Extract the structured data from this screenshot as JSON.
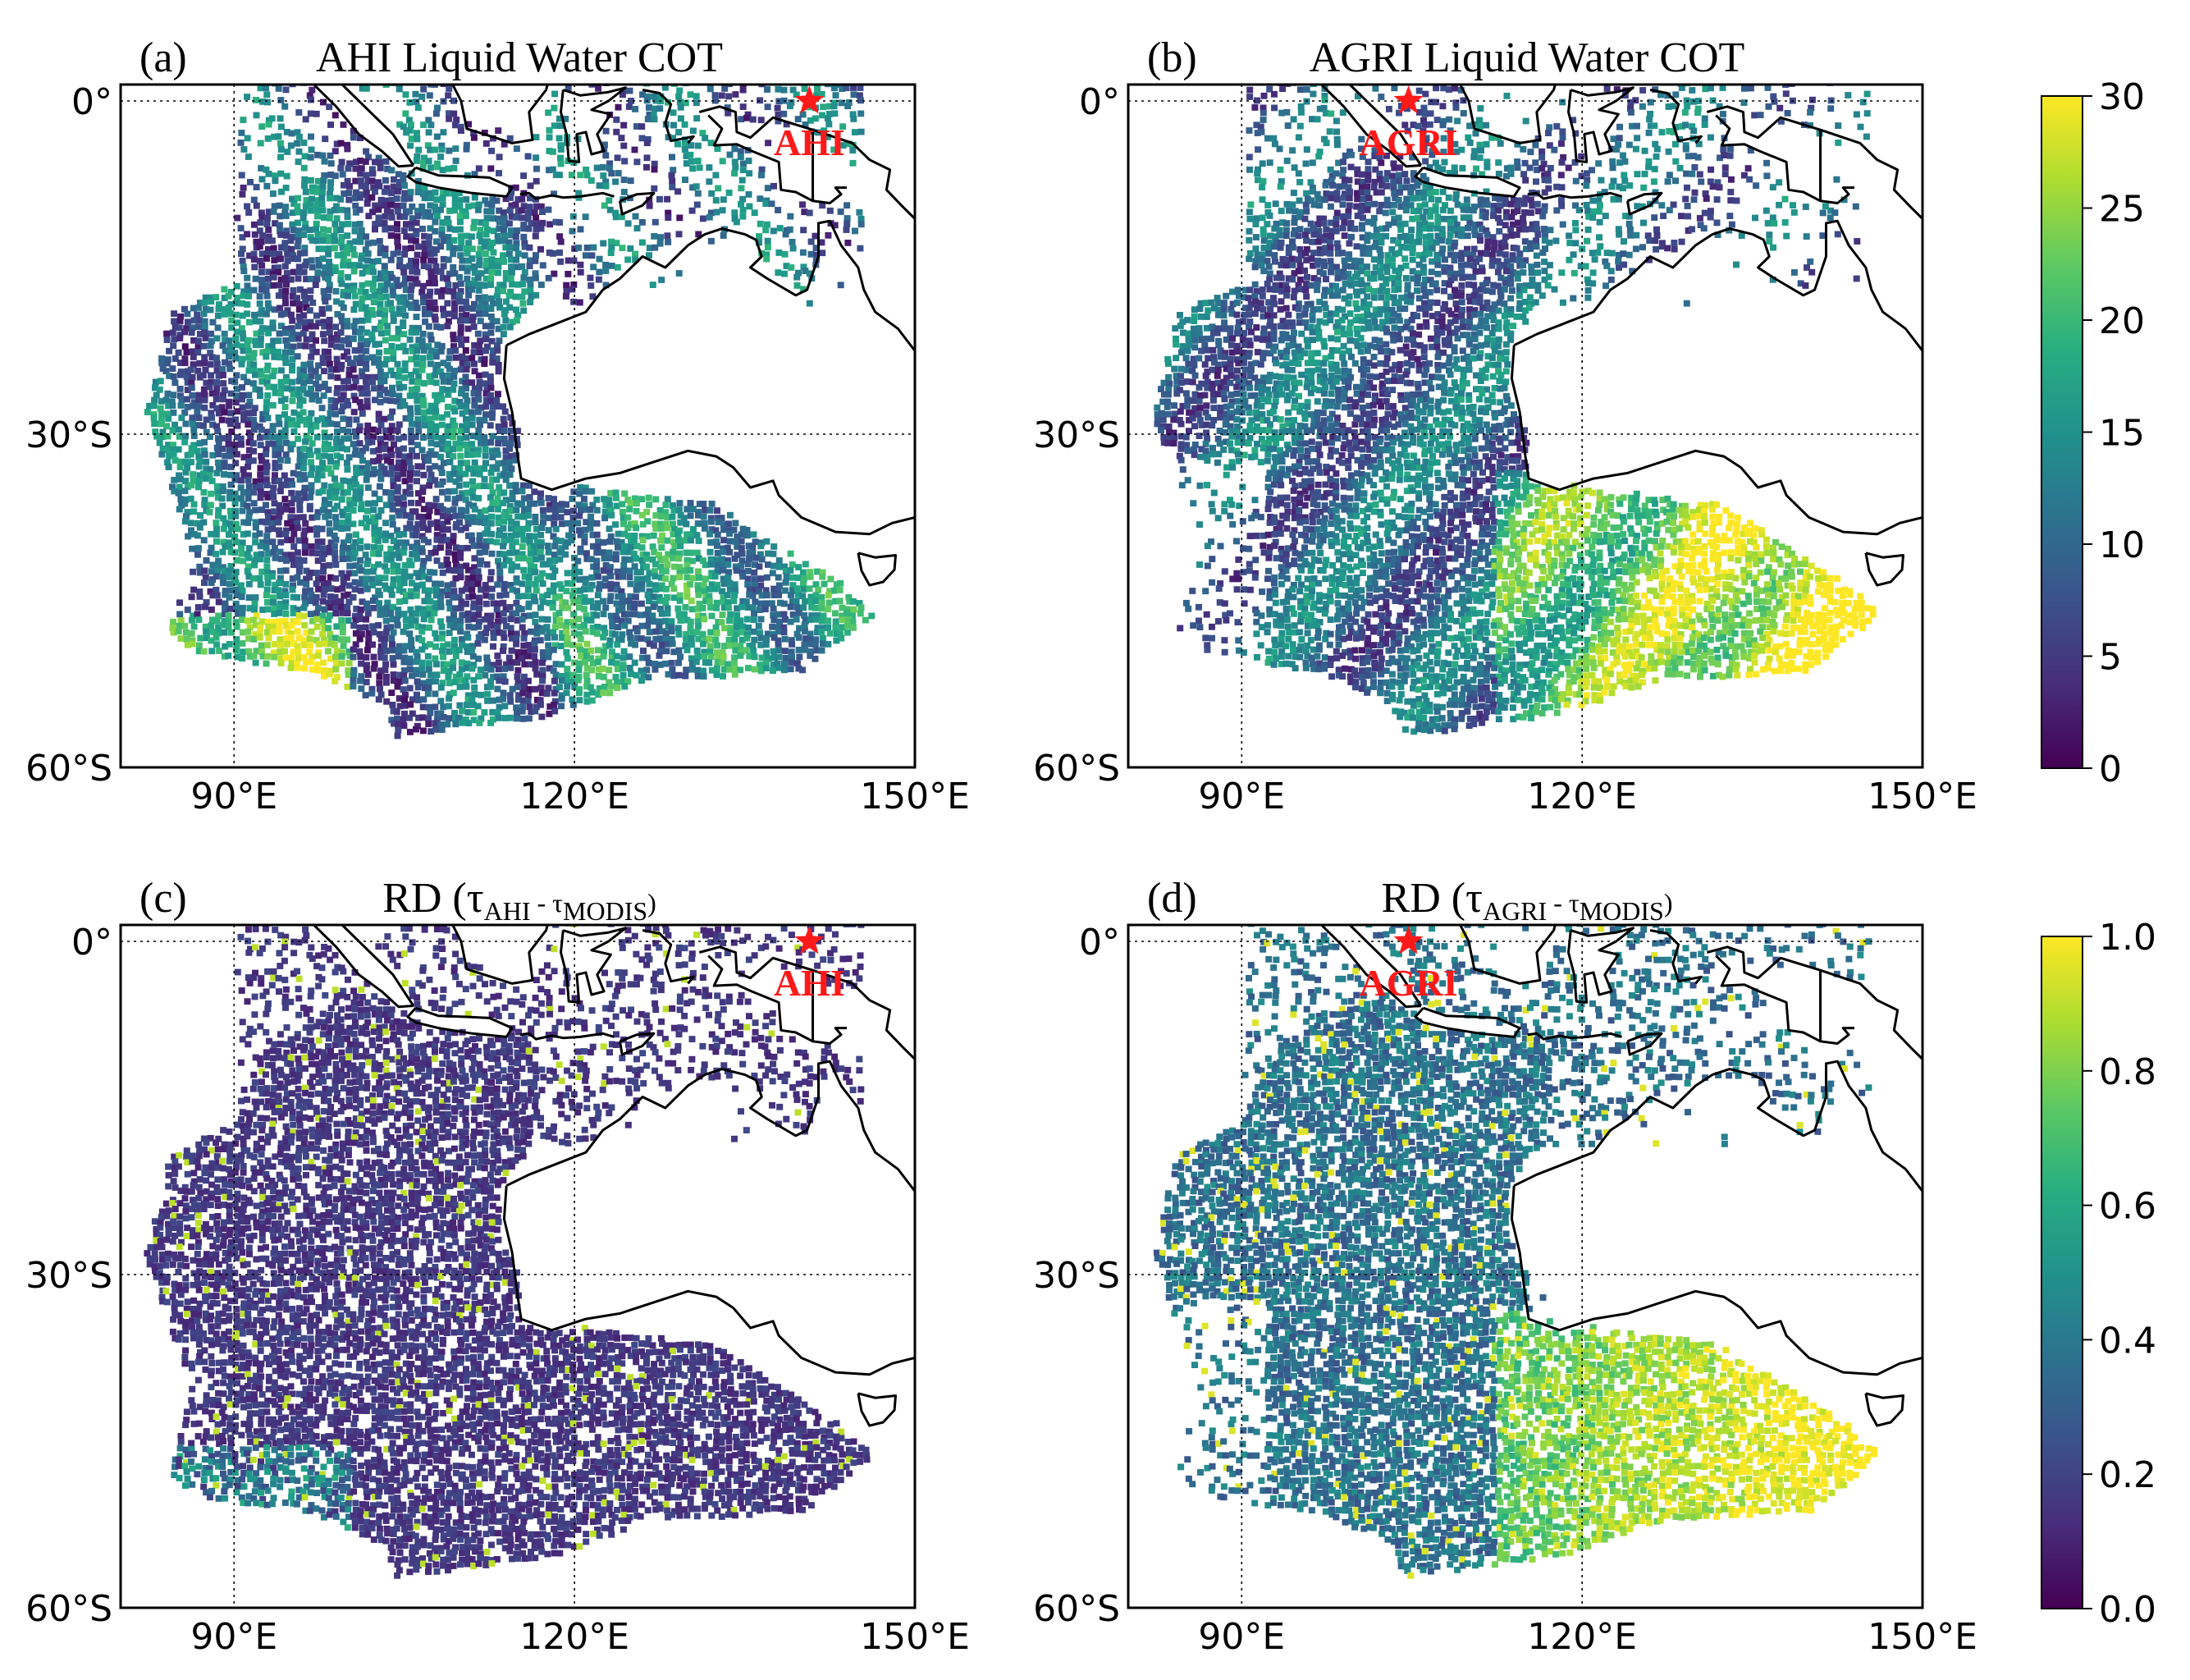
{
  "panels": [
    {
      "id": "a",
      "label": "(a)",
      "title": "AHI Liquid Water COT",
      "title_type": "plain",
      "satellite": "AHI",
      "satellite_lon": 140.7,
      "satellite_lat": 0,
      "field": "cot",
      "colorbar": "cot"
    },
    {
      "id": "b",
      "label": "(b)",
      "title": "AGRI Liquid Water COT",
      "title_type": "plain",
      "satellite": "AGRI",
      "satellite_lon": 104.7,
      "satellite_lat": 0,
      "field": "cot_agri",
      "colorbar": "cot"
    },
    {
      "id": "c",
      "label": "(c)",
      "title_type": "rd",
      "title_prefix": "RD (",
      "tau": "τ",
      "sub1": "AHI",
      "minus": " - ",
      "sub2": "MODIS",
      "title_suffix": ")",
      "satellite": "AHI",
      "satellite_lon": 140.7,
      "satellite_lat": 0,
      "field": "rd_ahi",
      "colorbar": "rd"
    },
    {
      "id": "d",
      "label": "(d)",
      "title_type": "rd",
      "title_prefix": "RD (",
      "tau": "τ",
      "sub1": "AGRI",
      "minus": " - ",
      "sub2": "MODIS",
      "title_suffix": ")",
      "satellite": "AGRI",
      "satellite_lon": 104.7,
      "satellite_lat": 0,
      "field": "rd_agri",
      "colorbar": "rd"
    }
  ],
  "map": {
    "lon_range": [
      80,
      150
    ],
    "lat_range": [
      -60,
      3
    ],
    "x_ticks": [
      {
        "value": 90,
        "label": "90°E"
      },
      {
        "value": 120,
        "label": "120°E"
      },
      {
        "value": 150,
        "label": "150°E"
      }
    ],
    "y_ticks": [
      {
        "value": 0,
        "label": "0°"
      },
      {
        "value": -30,
        "label": "30°S"
      },
      {
        "value": -60,
        "label": "60°S"
      }
    ],
    "gridlines": {
      "lon": [
        90,
        120
      ],
      "lat": [
        0,
        -30
      ]
    },
    "marker": "star",
    "marker_color": "#ff1a1a"
  },
  "colorbars": {
    "cot": {
      "min": 0,
      "max": 30,
      "ticks": [
        "0",
        "5",
        "10",
        "15",
        "20",
        "25",
        "30"
      ],
      "colormap": "viridis"
    },
    "rd": {
      "min": 0,
      "max": 1,
      "ticks": [
        "0.0",
        "0.2",
        "0.4",
        "0.6",
        "0.8",
        "1.0"
      ],
      "colormap": "viridis"
    }
  }
}
